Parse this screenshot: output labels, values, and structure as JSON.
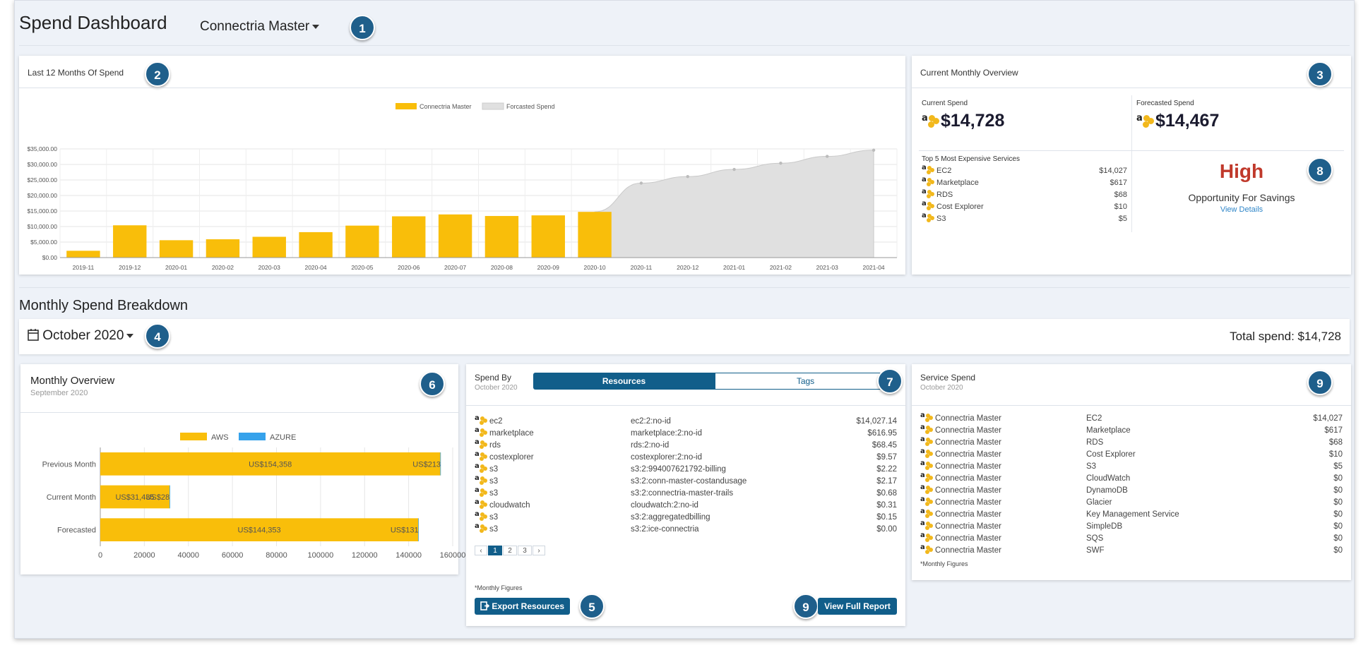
{
  "header": {
    "title": "Spend Dashboard",
    "account": "Connectria Master"
  },
  "badges": [
    "1",
    "2",
    "3",
    "4",
    "5",
    "6",
    "7",
    "8",
    "9"
  ],
  "spend12": {
    "title": "Last 12 Months Of Spend",
    "legend": [
      "Connectria Master",
      "Forcasted Spend"
    ]
  },
  "chart_data": [
    {
      "type": "bar",
      "title": "Last 12 Months Of Spend",
      "categories": [
        "2019-11",
        "2019-12",
        "2020-01",
        "2020-02",
        "2020-03",
        "2020-04",
        "2020-05",
        "2020-06",
        "2020-07",
        "2020-08",
        "2020-09",
        "2020-10",
        "2020-11",
        "2020-12",
        "2021-01",
        "2021-02",
        "2021-03",
        "2021-04"
      ],
      "series": [
        {
          "name": "Connectria Master",
          "type": "bar",
          "values": [
            2200,
            10400,
            5600,
            5900,
            6700,
            8200,
            10300,
            13300,
            13900,
            13400,
            13600,
            14728,
            null,
            null,
            null,
            null,
            null,
            null
          ]
        },
        {
          "name": "Forcasted Spend",
          "type": "area",
          "values": [
            null,
            null,
            null,
            null,
            null,
            null,
            null,
            null,
            null,
            null,
            null,
            14728,
            24000,
            26100,
            28400,
            30400,
            32600,
            34600
          ]
        }
      ],
      "yticks": [
        "$0.00",
        "$5,000.00",
        "$10,000.00",
        "$15,000.00",
        "$20,000.00",
        "$25,000.00",
        "$30,000.00",
        "$35,000.00"
      ],
      "ylim": [
        0,
        35000
      ],
      "grid": true,
      "legend": "top-center"
    },
    {
      "type": "bar",
      "orientation": "horizontal",
      "stacked": true,
      "title": "Monthly Overview",
      "categories": [
        "Previous Month",
        "Current Month",
        "Forecasted"
      ],
      "series": [
        {
          "name": "AWS",
          "values": [
            154358,
            31435,
            144353
          ],
          "labels": [
            "US$154,358",
            "US$31,435",
            "US$144,353"
          ]
        },
        {
          "name": "AZURE",
          "values": [
            213,
            28,
            131
          ],
          "labels": [
            "US$213",
            "US$28",
            "US$131"
          ]
        }
      ],
      "xticks": [
        "0",
        "20000",
        "40000",
        "60000",
        "80000",
        "100000",
        "120000",
        "140000",
        "160000"
      ],
      "xlim": [
        0,
        160000
      ],
      "grid": true,
      "legend": "top-center"
    }
  ],
  "overview": {
    "title": "Current Monthly Overview",
    "current_label": "Current Spend",
    "current_value": "$14,728",
    "forecast_label": "Forecasted Spend",
    "forecast_value": "$14,467",
    "top5_title": "Top 5 Most Expensive Services",
    "top5": [
      {
        "name": "EC2",
        "value": "$14,027"
      },
      {
        "name": "Marketplace",
        "value": "$617"
      },
      {
        "name": "RDS",
        "value": "$68"
      },
      {
        "name": "Cost Explorer",
        "value": "$10"
      },
      {
        "name": "S3",
        "value": "$5"
      }
    ],
    "savings_level": "High",
    "savings_label": "Opportunity For Savings",
    "savings_link": "View Details"
  },
  "breakdown": {
    "title": "Monthly Spend Breakdown",
    "month": "October 2020",
    "total": "Total spend: $14,728"
  },
  "monthly_overview": {
    "title": "Monthly Overview",
    "subtitle": "September 2020",
    "legend": [
      "AWS",
      "AZURE"
    ]
  },
  "spend_by": {
    "title": "Spend By",
    "subtitle": "October 2020",
    "tabs": [
      "Resources",
      "Tags"
    ],
    "rows": [
      {
        "service": "ec2",
        "id": "ec2:2:no-id",
        "cost": "$14,027.14"
      },
      {
        "service": "marketplace",
        "id": "marketplace:2:no-id",
        "cost": "$616.95"
      },
      {
        "service": "rds",
        "id": "rds:2:no-id",
        "cost": "$68.45"
      },
      {
        "service": "costexplorer",
        "id": "costexplorer:2:no-id",
        "cost": "$9.57"
      },
      {
        "service": "s3",
        "id": "s3:2:994007621792-billing",
        "cost": "$2.22"
      },
      {
        "service": "s3",
        "id": "s3:2:conn-master-costandusage",
        "cost": "$2.17"
      },
      {
        "service": "s3",
        "id": "s3:2:connectria-master-trails",
        "cost": "$0.68"
      },
      {
        "service": "cloudwatch",
        "id": "cloudwatch:2:no-id",
        "cost": "$0.31"
      },
      {
        "service": "s3",
        "id": "s3:2:aggregatedbilling",
        "cost": "$0.15"
      },
      {
        "service": "s3",
        "id": "s3:2:ice-connectria",
        "cost": "$0.00"
      }
    ],
    "pagination": [
      "‹",
      "1",
      "2",
      "3",
      "›"
    ],
    "footnote": "*Monthly Figures",
    "export_label": "Export Resources",
    "report_label": "View Full Report"
  },
  "service_spend": {
    "title": "Service Spend",
    "subtitle": "October 2020",
    "rows": [
      {
        "account": "Connectria Master",
        "service": "EC2",
        "cost": "$14,027"
      },
      {
        "account": "Connectria Master",
        "service": "Marketplace",
        "cost": "$617"
      },
      {
        "account": "Connectria Master",
        "service": "RDS",
        "cost": "$68"
      },
      {
        "account": "Connectria Master",
        "service": "Cost Explorer",
        "cost": "$10"
      },
      {
        "account": "Connectria Master",
        "service": "S3",
        "cost": "$5"
      },
      {
        "account": "Connectria Master",
        "service": "CloudWatch",
        "cost": "$0"
      },
      {
        "account": "Connectria Master",
        "service": "DynamoDB",
        "cost": "$0"
      },
      {
        "account": "Connectria Master",
        "service": "Glacier",
        "cost": "$0"
      },
      {
        "account": "Connectria Master",
        "service": "Key Management Service",
        "cost": "$0"
      },
      {
        "account": "Connectria Master",
        "service": "SimpleDB",
        "cost": "$0"
      },
      {
        "account": "Connectria Master",
        "service": "SQS",
        "cost": "$0"
      },
      {
        "account": "Connectria Master",
        "service": "SWF",
        "cost": "$0"
      }
    ],
    "footnote": "*Monthly Figures"
  },
  "colors": {
    "accent": "#115e8a",
    "bar": "#f9be0a",
    "azure": "#36a2eb",
    "forecast": "#e0e0e0",
    "high": "#c0392b",
    "link": "#2f86c8"
  }
}
